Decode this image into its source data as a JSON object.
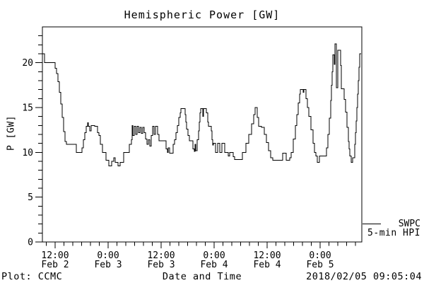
{
  "title": "Hemispheric Power [GW]",
  "footer": {
    "left": "Plot: CCMC",
    "right": "2018/02/05 09:05:04"
  },
  "legend": {
    "source": "SWPC",
    "series": "5-min HPI"
  },
  "colors": {
    "line": "#000000",
    "background": "#ffffff",
    "text": "#000000"
  },
  "chart_data": {
    "type": "line",
    "line_style": "step-after",
    "title": "Hemispheric Power [GW]",
    "xlabel": "Date and Time",
    "ylabel": "P [GW]",
    "y_unit": "GW",
    "x_unit": "day of February 2018, decimal (2.5 = Feb 2 12:00)",
    "xlim": [
      2.38,
      5.393
    ],
    "ylim": [
      0,
      24
    ],
    "grid": false,
    "y_major_ticks": [
      0,
      5,
      10,
      15,
      20
    ],
    "y_minor_step": 1,
    "x_minor_step": 0.0833333,
    "x_major_ticks": [
      {
        "pos": 2.5,
        "time": "12:00",
        "date": "Feb 2"
      },
      {
        "pos": 3.0,
        "time": "0:00",
        "date": "Feb 3"
      },
      {
        "pos": 3.5,
        "time": "12:00",
        "date": "Feb 3"
      },
      {
        "pos": 4.0,
        "time": "0:00",
        "date": "Feb 4"
      },
      {
        "pos": 4.5,
        "time": "12:00",
        "date": "Feb 4"
      },
      {
        "pos": 5.0,
        "time": "0:00",
        "date": "Feb 5"
      }
    ],
    "legend_position": "outside-right-bottom",
    "series": [
      {
        "name": "SWPC 5-min HPI",
        "points": [
          [
            2.38,
            21.0
          ],
          [
            2.4,
            20.0
          ],
          [
            2.5,
            19.4
          ],
          [
            2.513,
            18.8
          ],
          [
            2.527,
            17.9
          ],
          [
            2.54,
            16.7
          ],
          [
            2.553,
            15.4
          ],
          [
            2.567,
            13.9
          ],
          [
            2.58,
            12.3
          ],
          [
            2.593,
            11.2
          ],
          [
            2.607,
            10.9
          ],
          [
            2.7,
            10.0
          ],
          [
            2.753,
            10.5
          ],
          [
            2.767,
            11.4
          ],
          [
            2.78,
            12.2
          ],
          [
            2.793,
            12.9
          ],
          [
            2.807,
            13.3
          ],
          [
            2.813,
            12.9
          ],
          [
            2.827,
            12.4
          ],
          [
            2.84,
            13.0
          ],
          [
            2.873,
            12.9
          ],
          [
            2.9,
            12.2
          ],
          [
            2.913,
            11.9
          ],
          [
            2.927,
            10.9
          ],
          [
            2.947,
            10.0
          ],
          [
            2.98,
            9.1
          ],
          [
            3.007,
            8.5
          ],
          [
            3.033,
            9.0
          ],
          [
            3.053,
            9.4
          ],
          [
            3.067,
            8.9
          ],
          [
            3.093,
            8.5
          ],
          [
            3.113,
            8.9
          ],
          [
            3.147,
            10.0
          ],
          [
            3.2,
            10.9
          ],
          [
            3.22,
            11.4
          ],
          [
            3.227,
            13.0
          ],
          [
            3.233,
            11.9
          ],
          [
            3.247,
            12.9
          ],
          [
            3.26,
            12.0
          ],
          [
            3.273,
            12.9
          ],
          [
            3.287,
            12.2
          ],
          [
            3.3,
            12.8
          ],
          [
            3.313,
            12.1
          ],
          [
            3.327,
            12.8
          ],
          [
            3.34,
            12.2
          ],
          [
            3.353,
            11.5
          ],
          [
            3.367,
            10.9
          ],
          [
            3.38,
            11.4
          ],
          [
            3.393,
            10.7
          ],
          [
            3.407,
            11.9
          ],
          [
            3.42,
            12.9
          ],
          [
            3.433,
            12.0
          ],
          [
            3.447,
            12.9
          ],
          [
            3.467,
            12.0
          ],
          [
            3.48,
            11.3
          ],
          [
            3.547,
            10.4
          ],
          [
            3.56,
            10.0
          ],
          [
            3.567,
            10.5
          ],
          [
            3.58,
            9.9
          ],
          [
            3.613,
            10.9
          ],
          [
            3.627,
            11.4
          ],
          [
            3.64,
            12.2
          ],
          [
            3.653,
            13.0
          ],
          [
            3.667,
            13.9
          ],
          [
            3.68,
            14.4
          ],
          [
            3.687,
            14.9
          ],
          [
            3.727,
            14.2
          ],
          [
            3.733,
            13.4
          ],
          [
            3.74,
            12.6
          ],
          [
            3.753,
            11.9
          ],
          [
            3.767,
            11.3
          ],
          [
            3.8,
            10.4
          ],
          [
            3.813,
            10.1
          ],
          [
            3.82,
            10.9
          ],
          [
            3.827,
            10.2
          ],
          [
            3.84,
            11.4
          ],
          [
            3.853,
            12.4
          ],
          [
            3.86,
            13.4
          ],
          [
            3.867,
            14.4
          ],
          [
            3.873,
            14.9
          ],
          [
            3.893,
            14.0
          ],
          [
            3.9,
            14.9
          ],
          [
            3.927,
            14.4
          ],
          [
            3.94,
            13.4
          ],
          [
            3.947,
            12.9
          ],
          [
            3.973,
            12.4
          ],
          [
            3.98,
            11.4
          ],
          [
            3.987,
            10.8
          ],
          [
            3.993,
            11.0
          ],
          [
            4.013,
            10.0
          ],
          [
            4.033,
            11.0
          ],
          [
            4.053,
            10.0
          ],
          [
            4.073,
            11.0
          ],
          [
            4.1,
            10.0
          ],
          [
            4.133,
            9.6
          ],
          [
            4.147,
            10.0
          ],
          [
            4.18,
            9.5
          ],
          [
            4.193,
            9.2
          ],
          [
            4.267,
            10.0
          ],
          [
            4.3,
            11.0
          ],
          [
            4.327,
            12.0
          ],
          [
            4.353,
            13.2
          ],
          [
            4.373,
            14.2
          ],
          [
            4.387,
            15.0
          ],
          [
            4.407,
            13.9
          ],
          [
            4.42,
            12.9
          ],
          [
            4.447,
            12.8
          ],
          [
            4.473,
            12.0
          ],
          [
            4.493,
            11.1
          ],
          [
            4.513,
            10.2
          ],
          [
            4.533,
            9.4
          ],
          [
            4.553,
            9.1
          ],
          [
            4.647,
            9.9
          ],
          [
            4.68,
            9.1
          ],
          [
            4.713,
            9.4
          ],
          [
            4.727,
            10.0
          ],
          [
            4.747,
            11.5
          ],
          [
            4.767,
            13.0
          ],
          [
            4.78,
            14.2
          ],
          [
            4.793,
            15.5
          ],
          [
            4.807,
            16.5
          ],
          [
            4.813,
            17.0
          ],
          [
            4.84,
            16.7
          ],
          [
            4.847,
            17.0
          ],
          [
            4.867,
            16.0
          ],
          [
            4.88,
            15.0
          ],
          [
            4.893,
            14.0
          ],
          [
            4.913,
            12.5
          ],
          [
            4.933,
            11.0
          ],
          [
            4.947,
            10.0
          ],
          [
            4.96,
            9.6
          ],
          [
            4.973,
            8.9
          ],
          [
            4.993,
            9.6
          ],
          [
            5.06,
            10.5
          ],
          [
            5.073,
            12.0
          ],
          [
            5.087,
            13.8
          ],
          [
            5.1,
            15.8
          ],
          [
            5.107,
            17.5
          ],
          [
            5.113,
            19.0
          ],
          [
            5.12,
            20.9
          ],
          [
            5.133,
            19.8
          ],
          [
            5.14,
            22.1
          ],
          [
            5.153,
            17.2
          ],
          [
            5.167,
            21.4
          ],
          [
            5.193,
            19.7
          ],
          [
            5.2,
            17.1
          ],
          [
            5.227,
            15.9
          ],
          [
            5.24,
            14.5
          ],
          [
            5.253,
            12.8
          ],
          [
            5.267,
            11.2
          ],
          [
            5.273,
            10.4
          ],
          [
            5.28,
            9.6
          ],
          [
            5.293,
            8.9
          ],
          [
            5.307,
            9.4
          ],
          [
            5.327,
            10.9
          ],
          [
            5.333,
            12.2
          ],
          [
            5.34,
            13.5
          ],
          [
            5.347,
            15.0
          ],
          [
            5.353,
            16.5
          ],
          [
            5.36,
            18.0
          ],
          [
            5.367,
            19.5
          ],
          [
            5.373,
            21.0
          ],
          [
            5.387,
            21.0
          ]
        ]
      }
    ]
  }
}
